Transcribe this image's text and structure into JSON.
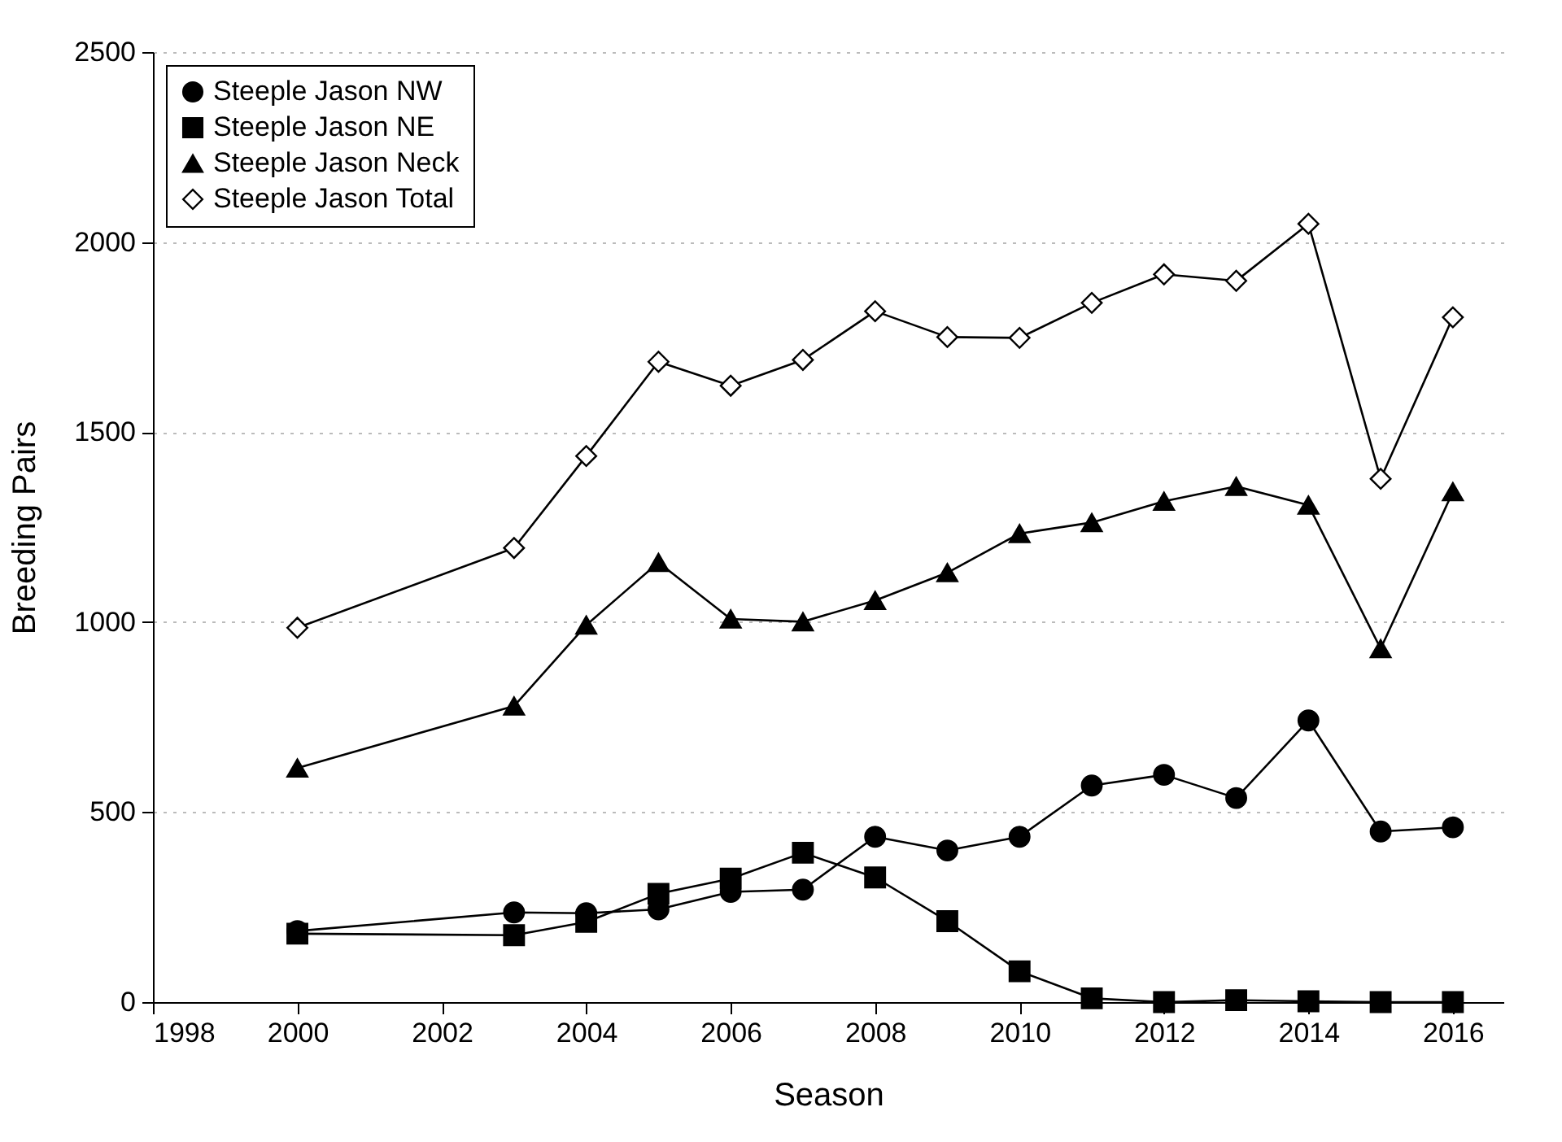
{
  "chart_data": {
    "type": "line",
    "xlabel": "Season",
    "ylabel": "Breeding Pairs",
    "x": [
      2000,
      2003,
      2004,
      2005,
      2006,
      2007,
      2008,
      2009,
      2010,
      2011,
      2012,
      2013,
      2014,
      2015,
      2016
    ],
    "series": [
      {
        "name": "Steeple Jason NW",
        "color": "#000000",
        "marker": "circle",
        "values": [
          187,
          236,
          234,
          244,
          290,
          296,
          435,
          399,
          435,
          570,
          598,
          537,
          741,
          449,
          460
        ]
      },
      {
        "name": "Steeple Jason NE",
        "color": "#000000",
        "marker": "square",
        "values": [
          180,
          176,
          211,
          285,
          325,
          393,
          328,
          213,
          81,
          10,
          0,
          5,
          2,
          0,
          0
        ]
      },
      {
        "name": "Steeple Jason Neck",
        "color": "#000000",
        "marker": "triangle",
        "values": [
          616,
          779,
          992,
          1157,
          1008,
          1001,
          1057,
          1130,
          1233,
          1262,
          1318,
          1357,
          1308,
          930,
          1343
        ]
      },
      {
        "name": "Steeple Jason Total",
        "color": "#000000",
        "marker": "diamond",
        "values": [
          985,
          1195,
          1437,
          1685,
          1622,
          1690,
          1818,
          1750,
          1748,
          1840,
          1915,
          1898,
          2048,
          1377,
          1802
        ]
      }
    ],
    "xlim": [
      1998,
      2016.7
    ],
    "xticks": [
      1998,
      2000,
      2002,
      2004,
      2006,
      2008,
      2010,
      2012,
      2014,
      2016
    ],
    "ylim": [
      0,
      2500
    ],
    "yticks": [
      0,
      500,
      1000,
      1500,
      2000,
      2500
    ],
    "grid": "y",
    "legend": "top left",
    "line_style": "solid"
  }
}
